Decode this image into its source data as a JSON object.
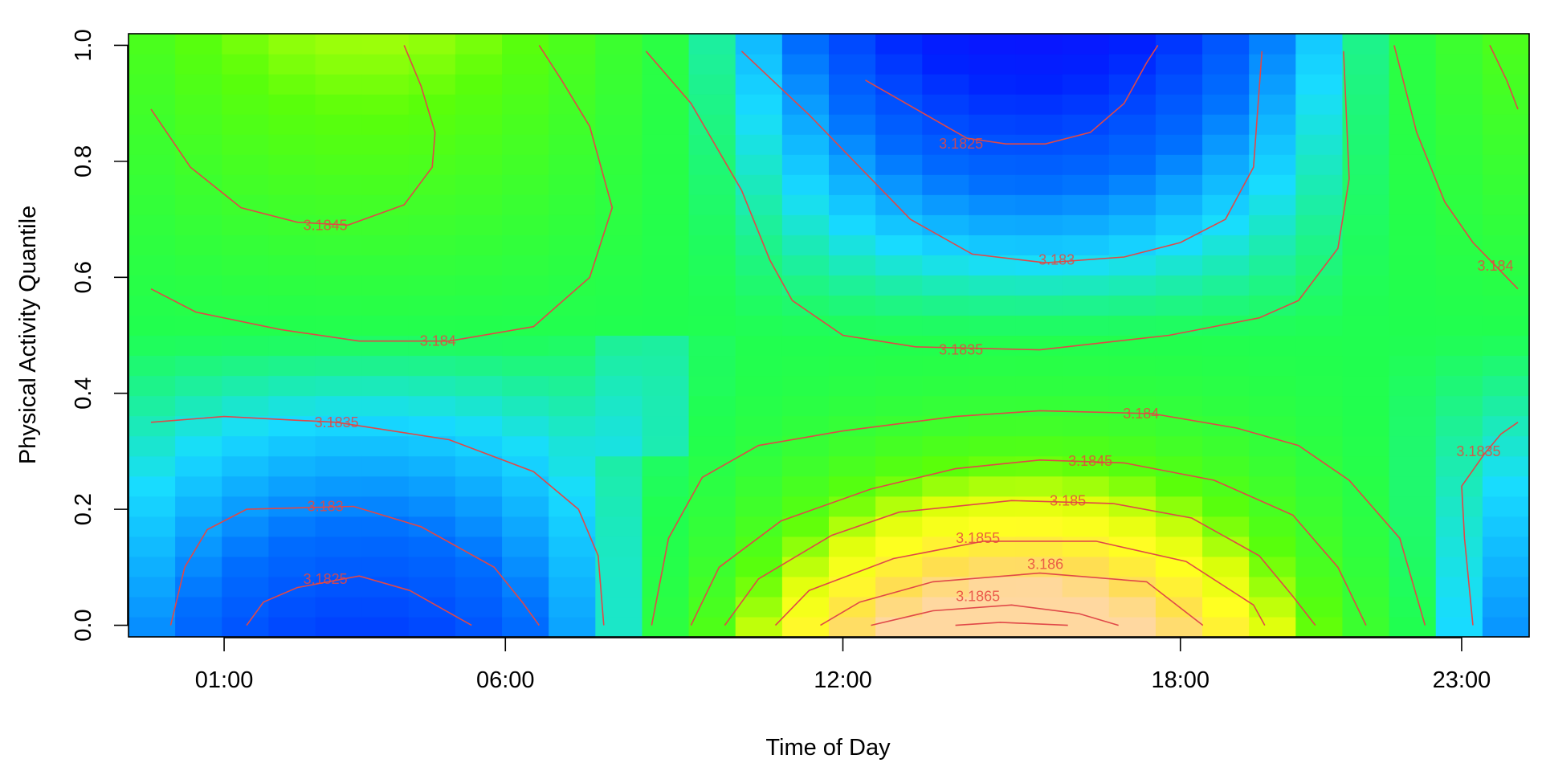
{
  "chart_data": {
    "type": "heatmap",
    "xlabel": "Time of Day",
    "ylabel": "Physical Activity Quantile",
    "x_range_hours": [
      -0.7,
      24.2
    ],
    "ylim": [
      -0.02,
      1.02
    ],
    "x_ticks": [
      {
        "hour": 1,
        "label": "01:00"
      },
      {
        "hour": 6,
        "label": "06:00"
      },
      {
        "hour": 12,
        "label": "12:00"
      },
      {
        "hour": 18,
        "label": "18:00"
      },
      {
        "hour": 23,
        "label": "23:00"
      }
    ],
    "y_ticks": [
      {
        "value": 0.0,
        "label": "0.0"
      },
      {
        "value": 0.2,
        "label": "0.2"
      },
      {
        "value": 0.4,
        "label": "0.4"
      },
      {
        "value": 0.6,
        "label": "0.6"
      },
      {
        "value": 0.8,
        "label": "0.8"
      },
      {
        "value": 1.0,
        "label": "1.0"
      }
    ],
    "grid": false,
    "legend": "none",
    "colors": {
      "contour": "#e04848",
      "low": "#1a00ff",
      "mid_low": "#0050ff",
      "mid": "#18e0ff",
      "mid_high": "#20ff40",
      "high": "#ffff20",
      "max": "#ffd8a0"
    },
    "contour_labels": [
      {
        "label": "3.1845",
        "hour": 2.8,
        "q": 0.69
      },
      {
        "label": "3.184",
        "hour": 4.8,
        "q": 0.49
      },
      {
        "label": "3.1835",
        "hour": 3.0,
        "q": 0.35
      },
      {
        "label": "3.183",
        "hour": 2.8,
        "q": 0.205
      },
      {
        "label": "3.1825",
        "hour": 2.8,
        "q": 0.08
      },
      {
        "label": "3.1825",
        "hour": 14.1,
        "q": 0.83
      },
      {
        "label": "3.183",
        "hour": 15.8,
        "q": 0.63
      },
      {
        "label": "3.1835",
        "hour": 14.1,
        "q": 0.475
      },
      {
        "label": "3.184",
        "hour": 17.3,
        "q": 0.365
      },
      {
        "label": "3.1845",
        "hour": 16.4,
        "q": 0.283
      },
      {
        "label": "3.185",
        "hour": 16.0,
        "q": 0.215
      },
      {
        "label": "3.1855",
        "hour": 14.4,
        "q": 0.15
      },
      {
        "label": "3.186",
        "hour": 15.6,
        "q": 0.105
      },
      {
        "label": "3.1865",
        "hour": 14.4,
        "q": 0.05
      },
      {
        "label": "3.184",
        "hour": 23.6,
        "q": 0.62
      },
      {
        "label": "3.1835",
        "hour": 23.3,
        "q": 0.3
      }
    ],
    "contour_lines": [
      [
        [
          -0.3,
          0.89
        ],
        [
          0.4,
          0.79
        ],
        [
          1.3,
          0.72
        ],
        [
          2.3,
          0.695
        ],
        [
          3.2,
          0.69
        ],
        [
          4.2,
          0.725
        ],
        [
          4.7,
          0.79
        ],
        [
          4.75,
          0.85
        ],
        [
          4.5,
          0.93
        ],
        [
          4.2,
          1.0
        ]
      ],
      [
        [
          -0.3,
          0.58
        ],
        [
          0.5,
          0.54
        ],
        [
          2,
          0.51
        ],
        [
          3.4,
          0.49
        ],
        [
          5,
          0.49
        ],
        [
          6.5,
          0.515
        ],
        [
          7.5,
          0.6
        ],
        [
          7.9,
          0.72
        ],
        [
          7.5,
          0.86
        ],
        [
          7,
          0.94
        ],
        [
          6.6,
          1.0
        ]
      ],
      [
        [
          -0.3,
          0.35
        ],
        [
          1,
          0.36
        ],
        [
          3,
          0.35
        ],
        [
          5,
          0.32
        ],
        [
          6.5,
          0.265
        ],
        [
          7.3,
          0.2
        ],
        [
          7.65,
          0.12
        ],
        [
          7.75,
          0.0
        ]
      ],
      [
        [
          0.05,
          0.0
        ],
        [
          0.3,
          0.1
        ],
        [
          0.7,
          0.165
        ],
        [
          1.4,
          0.2
        ],
        [
          3.3,
          0.205
        ],
        [
          4.5,
          0.17
        ],
        [
          5.8,
          0.1
        ],
        [
          6.3,
          0.04
        ],
        [
          6.6,
          0.0
        ]
      ],
      [
        [
          1.4,
          0.0
        ],
        [
          1.7,
          0.04
        ],
        [
          2.3,
          0.065
        ],
        [
          3.4,
          0.085
        ],
        [
          4.3,
          0.06
        ],
        [
          5.4,
          0.0
        ]
      ],
      [
        [
          8.5,
          0.99
        ],
        [
          9.3,
          0.9
        ],
        [
          10.2,
          0.75
        ],
        [
          10.7,
          0.63
        ],
        [
          11.1,
          0.56
        ],
        [
          12,
          0.5
        ],
        [
          13.3,
          0.48
        ],
        [
          15.5,
          0.475
        ],
        [
          17.8,
          0.5
        ],
        [
          19.4,
          0.53
        ],
        [
          20.1,
          0.56
        ],
        [
          20.8,
          0.65
        ],
        [
          21.0,
          0.77
        ],
        [
          20.9,
          0.99
        ]
      ],
      [
        [
          10.2,
          0.99
        ],
        [
          11.4,
          0.88
        ],
        [
          12.4,
          0.78
        ],
        [
          13.2,
          0.7
        ],
        [
          14.3,
          0.64
        ],
        [
          15.6,
          0.625
        ],
        [
          17,
          0.635
        ],
        [
          18,
          0.66
        ],
        [
          18.8,
          0.7
        ],
        [
          19.3,
          0.79
        ],
        [
          19.45,
          0.99
        ]
      ],
      [
        [
          12.4,
          0.94
        ],
        [
          13.3,
          0.89
        ],
        [
          14.2,
          0.84
        ],
        [
          14.9,
          0.83
        ],
        [
          15.6,
          0.83
        ],
        [
          16.4,
          0.85
        ],
        [
          17,
          0.9
        ],
        [
          17.4,
          0.97
        ],
        [
          17.6,
          1.0
        ]
      ],
      [
        [
          8.6,
          0.0
        ],
        [
          8.9,
          0.15
        ],
        [
          9.5,
          0.255
        ],
        [
          10.5,
          0.31
        ],
        [
          12,
          0.335
        ],
        [
          14,
          0.36
        ],
        [
          15.5,
          0.37
        ],
        [
          17.5,
          0.365
        ],
        [
          19,
          0.34
        ],
        [
          20.1,
          0.31
        ],
        [
          21,
          0.25
        ],
        [
          21.9,
          0.15
        ],
        [
          22.35,
          0.0
        ]
      ],
      [
        [
          9.3,
          0.0
        ],
        [
          9.8,
          0.1
        ],
        [
          10.9,
          0.18
        ],
        [
          12.5,
          0.235
        ],
        [
          14,
          0.27
        ],
        [
          15.5,
          0.285
        ],
        [
          17,
          0.28
        ],
        [
          18.6,
          0.25
        ],
        [
          20,
          0.19
        ],
        [
          20.8,
          0.1
        ],
        [
          21.3,
          0.0
        ]
      ],
      [
        [
          9.9,
          0.0
        ],
        [
          10.5,
          0.08
        ],
        [
          11.8,
          0.155
        ],
        [
          13,
          0.195
        ],
        [
          15,
          0.215
        ],
        [
          16.8,
          0.21
        ],
        [
          18.2,
          0.185
        ],
        [
          19.4,
          0.12
        ],
        [
          20.0,
          0.05
        ],
        [
          20.4,
          0.0
        ]
      ],
      [
        [
          10.8,
          0.0
        ],
        [
          11.4,
          0.06
        ],
        [
          12.9,
          0.115
        ],
        [
          14.5,
          0.145
        ],
        [
          16.5,
          0.145
        ],
        [
          18.1,
          0.11
        ],
        [
          19.3,
          0.035
        ],
        [
          19.5,
          0.0
        ]
      ],
      [
        [
          11.6,
          0.0
        ],
        [
          12.3,
          0.04
        ],
        [
          13.6,
          0.075
        ],
        [
          15.5,
          0.09
        ],
        [
          17.4,
          0.075
        ],
        [
          18.4,
          0.0
        ]
      ],
      [
        [
          12.5,
          0.0
        ],
        [
          13.6,
          0.025
        ],
        [
          15,
          0.035
        ],
        [
          16.2,
          0.02
        ],
        [
          16.9,
          0.0
        ]
      ],
      [
        [
          14.0,
          0.0
        ],
        [
          14.8,
          0.005
        ],
        [
          16,
          0.0
        ]
      ],
      [
        [
          21.8,
          1.0
        ],
        [
          22.2,
          0.85
        ],
        [
          22.7,
          0.73
        ],
        [
          23.2,
          0.66
        ],
        [
          23.6,
          0.62
        ],
        [
          24.0,
          0.58
        ]
      ],
      [
        [
          23.5,
          1.0
        ],
        [
          23.8,
          0.94
        ],
        [
          24.0,
          0.89
        ]
      ],
      [
        [
          23.2,
          0.0
        ],
        [
          23.05,
          0.15
        ],
        [
          23.0,
          0.24
        ],
        [
          23.4,
          0.295
        ],
        [
          23.7,
          0.33
        ],
        [
          24.0,
          0.35
        ]
      ]
    ]
  }
}
